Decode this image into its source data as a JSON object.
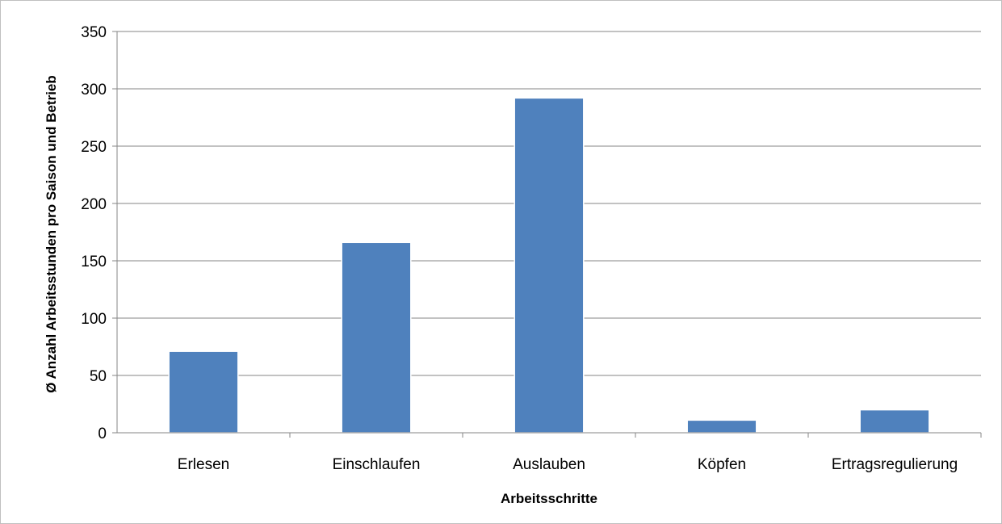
{
  "chart_data": {
    "type": "bar",
    "categories": [
      "Erlesen",
      "Einschlaufen",
      "Auslauben",
      "Köpfen",
      "Ertragsregulierung"
    ],
    "values": [
      71,
      166,
      292,
      11,
      20
    ],
    "xlabel": "Arbeitsschritte",
    "ylabel": "Ø Anzahl Arbeitsstunden pro Saison und Betrieb",
    "ylim": [
      0,
      350
    ],
    "yticks": [
      0,
      50,
      100,
      150,
      200,
      250,
      300,
      350
    ],
    "grid": true,
    "legend": "none",
    "bar_color": "#4f81bd",
    "grid_color": "#868686"
  }
}
